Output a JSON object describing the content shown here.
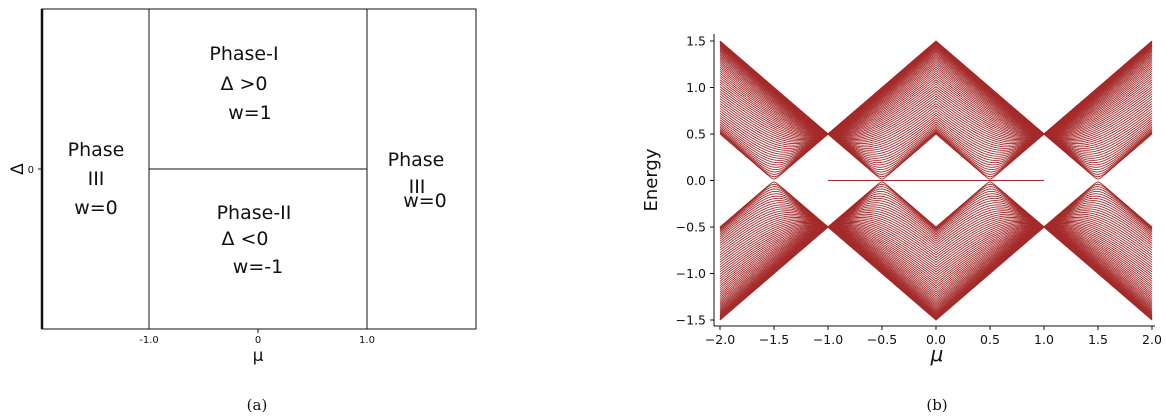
{
  "chart_data": [
    {
      "type": "diagram",
      "panel": "a",
      "caption": "(a)",
      "xlabel": "μ",
      "ylabel": "Δ",
      "xticks": [
        {
          "value": -1.0,
          "label": "-1.0"
        },
        {
          "value": 0,
          "label": "0"
        },
        {
          "value": 1.0,
          "label": "1.0"
        }
      ],
      "yticks": [
        {
          "value": 0,
          "label": "0"
        }
      ],
      "regions": [
        {
          "id": "left",
          "lines": [
            "Phase",
            "III",
            "w=0"
          ]
        },
        {
          "id": "top",
          "lines": [
            "Phase-I",
            "Δ >0",
            "w=1"
          ]
        },
        {
          "id": "bottom",
          "lines": [
            "Phase-II",
            "Δ <0",
            "w=-1"
          ]
        },
        {
          "id": "right",
          "lines": [
            "Phase",
            "III",
            "w=0"
          ]
        }
      ]
    },
    {
      "type": "line",
      "panel": "b",
      "caption": "(b)",
      "xlabel": "μ",
      "ylabel": "Energy",
      "xlim": [
        -2.0,
        2.0
      ],
      "ylim": [
        -1.5,
        1.5
      ],
      "xticks": [
        "−2.0",
        "−1.5",
        "−1.0",
        "−0.5",
        "0.0",
        "0.5",
        "1.0",
        "1.5",
        "2.0"
      ],
      "xtick_values": [
        -2.0,
        -1.5,
        -1.0,
        -0.5,
        0.0,
        0.5,
        1.0,
        1.5,
        2.0
      ],
      "yticks": [
        "−1.5",
        "−1.0",
        "−0.5",
        "0.0",
        "0.5",
        "1.0",
        "1.5"
      ],
      "ytick_values": [
        -1.5,
        -1.0,
        -0.5,
        0.0,
        0.5,
        1.0,
        1.5
      ],
      "series_color": "#a52a2a",
      "band_count": 60,
      "band_bounds": {
        "at_mu_2": [
          0.5,
          1.5
        ],
        "at_mu_0": 0.5,
        "at_mu_1": 0.0
      },
      "zero_mode": {
        "x": [
          -1.0,
          1.0
        ],
        "y": 0.0
      }
    }
  ]
}
